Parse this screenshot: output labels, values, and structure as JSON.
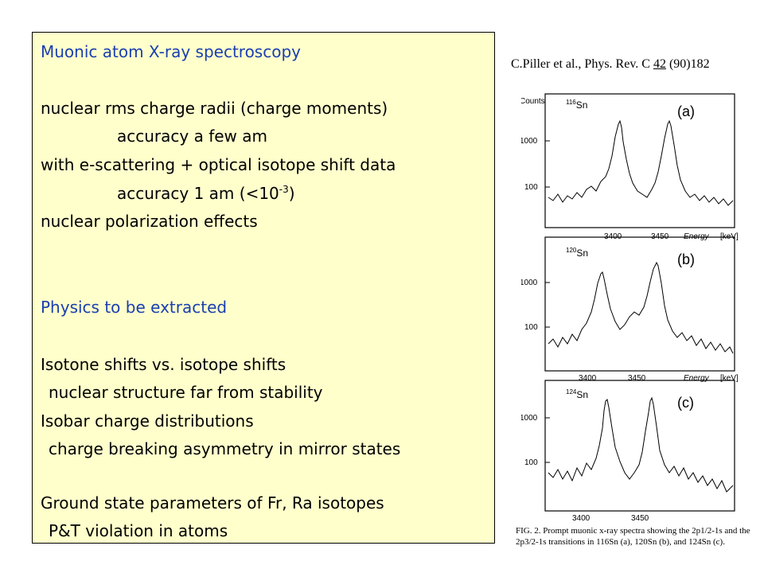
{
  "textbox": {
    "title": "Muonic atom X-ray spectroscopy",
    "line1": "nuclear rms charge radii (charge moments)",
    "line2": "accuracy a few am",
    "line3": "with e-scattering + optical isotope shift data",
    "line4_prefix": "accuracy 1 am (<10",
    "line4_sup": "-3",
    "line4_suffix": ")",
    "line5": "nuclear polarization effects",
    "section2": "Physics to be extracted",
    "line6": "Isotone shifts vs. isotope shifts",
    "arrow": "",
    "line7": "nuclear structure far from stability",
    "line8": "Isobar charge distributions",
    "line9": "charge breaking asymmetry in mirror states",
    "line10": "Ground state parameters of Fr, Ra isotopes",
    "line11": "P&T violation in atoms"
  },
  "citation": {
    "prefix": "C.Piller et al., Phys. Rev. C ",
    "volume": "42",
    "suffix": " (90)182"
  },
  "figure": {
    "panels": [
      {
        "isotope_mass": "116",
        "element": "Sn",
        "label": "(a)"
      },
      {
        "isotope_mass": "120",
        "element": "Sn",
        "label": "(b)"
      },
      {
        "isotope_mass": "124",
        "element": "Sn",
        "label": "(c)"
      }
    ],
    "y_axis_top_label": "Counts",
    "y_ticks": [
      "1000",
      "100"
    ],
    "x_ticks": [
      "3400",
      "3450"
    ],
    "x_axis_label": "Energy",
    "x_unit": "[keV]",
    "caption": "FIG. 2.  Prompt muonic x-ray spectra showing the 2p1/2-1s and the 2p3/2-1s transitions in 116Sn (a), 120Sn (b), and 124Sn (c)."
  }
}
